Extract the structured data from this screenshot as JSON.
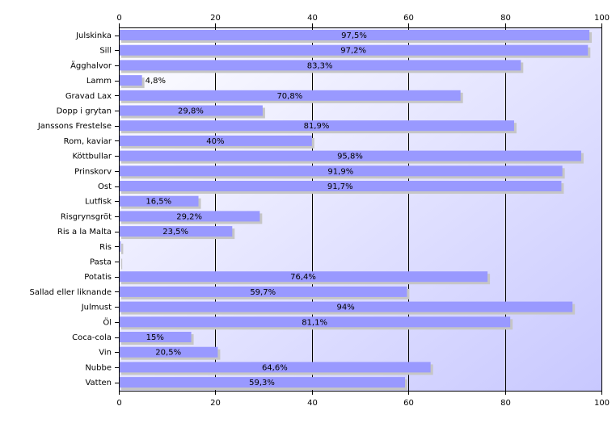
{
  "chart_data": {
    "type": "bar",
    "orientation": "horizontal",
    "categories": [
      "Julskinka",
      "Sill",
      "Ägghalvor",
      "Lamm",
      "Gravad Lax",
      "Dopp i grytan",
      "Janssons Frestelse",
      "Rom, kaviar",
      "Köttbullar",
      "Prinskorv",
      "Ost",
      "Lutfisk",
      "Risgrynsgröt",
      "Ris a la Malta",
      "Ris",
      "Pasta",
      "Potatis",
      "Sallad eller liknande",
      "Julmust",
      "Öl",
      "Coca-cola",
      "Vin",
      "Nubbe",
      "Vatten"
    ],
    "values": [
      97.5,
      97.2,
      83.3,
      4.8,
      70.8,
      29.8,
      81.9,
      40,
      95.8,
      91.9,
      91.7,
      16.5,
      29.2,
      23.5,
      0.4,
      0.2,
      76.4,
      59.7,
      94,
      81.1,
      15,
      20.5,
      64.6,
      59.3
    ],
    "labels": [
      "97,5%",
      "97,2%",
      "83,3%",
      "4,8%",
      "70,8%",
      "29,8%",
      "81,9%",
      "40%",
      "95,8%",
      "91,9%",
      "91,7%",
      "16,5%",
      "29,2%",
      "23,5%",
      "",
      "",
      "76,4%",
      "59,7%",
      "94%",
      "81,1%",
      "15%",
      "20,5%",
      "64,6%",
      "59,3%"
    ],
    "xlim": [
      0,
      100
    ],
    "xticks": [
      0,
      20,
      40,
      60,
      80,
      100
    ],
    "title": "",
    "xlabel": "",
    "ylabel": "",
    "grid": true,
    "bar_color": "#9999ff",
    "shadow_color": "#c6c6c6",
    "plot_gradient_start": "#ffffff",
    "plot_gradient_end": "#c8c8ff"
  }
}
